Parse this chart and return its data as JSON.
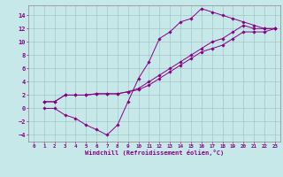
{
  "xlabel": "Windchill (Refroidissement éolien,°C)",
  "bg_color": "#c6e8e8",
  "line_color": "#880088",
  "xlim": [
    -0.5,
    23.5
  ],
  "ylim": [
    -5,
    15.5
  ],
  "xticks": [
    0,
    1,
    2,
    3,
    4,
    5,
    6,
    7,
    8,
    9,
    10,
    11,
    12,
    13,
    14,
    15,
    16,
    17,
    18,
    19,
    20,
    21,
    22,
    23
  ],
  "yticks": [
    -4,
    -2,
    0,
    2,
    4,
    6,
    8,
    10,
    12,
    14
  ],
  "line1_x": [
    1,
    2,
    3,
    4,
    5,
    6,
    7,
    8,
    9,
    10,
    11,
    12,
    13,
    14,
    15,
    16,
    17,
    18,
    19,
    20,
    21,
    22,
    23
  ],
  "line1_y": [
    0,
    0,
    -1,
    -1.5,
    -2.5,
    -3.2,
    -4,
    -2.5,
    1,
    4.5,
    7,
    10.5,
    11.5,
    13,
    13.5,
    15,
    14.5,
    14,
    13.5,
    13,
    12.5,
    12,
    12
  ],
  "line2_x": [
    1,
    2,
    3,
    4,
    5,
    6,
    7,
    8,
    9,
    10,
    11,
    12,
    13,
    14,
    15,
    16,
    17,
    18,
    19,
    20,
    21,
    22,
    23
  ],
  "line2_y": [
    1,
    1,
    2,
    2,
    2,
    2.2,
    2.2,
    2.2,
    2.5,
    3,
    4,
    5,
    6,
    7,
    8,
    9,
    10,
    10.5,
    11.5,
    12.5,
    12,
    12,
    12
  ],
  "line3_x": [
    1,
    2,
    3,
    4,
    5,
    6,
    7,
    8,
    9,
    10,
    11,
    12,
    13,
    14,
    15,
    16,
    17,
    18,
    19,
    20,
    21,
    22,
    23
  ],
  "line3_y": [
    1,
    1,
    2,
    2,
    2,
    2.2,
    2.2,
    2.2,
    2.5,
    2.8,
    3.5,
    4.5,
    5.5,
    6.5,
    7.5,
    8.5,
    9,
    9.5,
    10.5,
    11.5,
    11.5,
    11.5,
    12
  ]
}
